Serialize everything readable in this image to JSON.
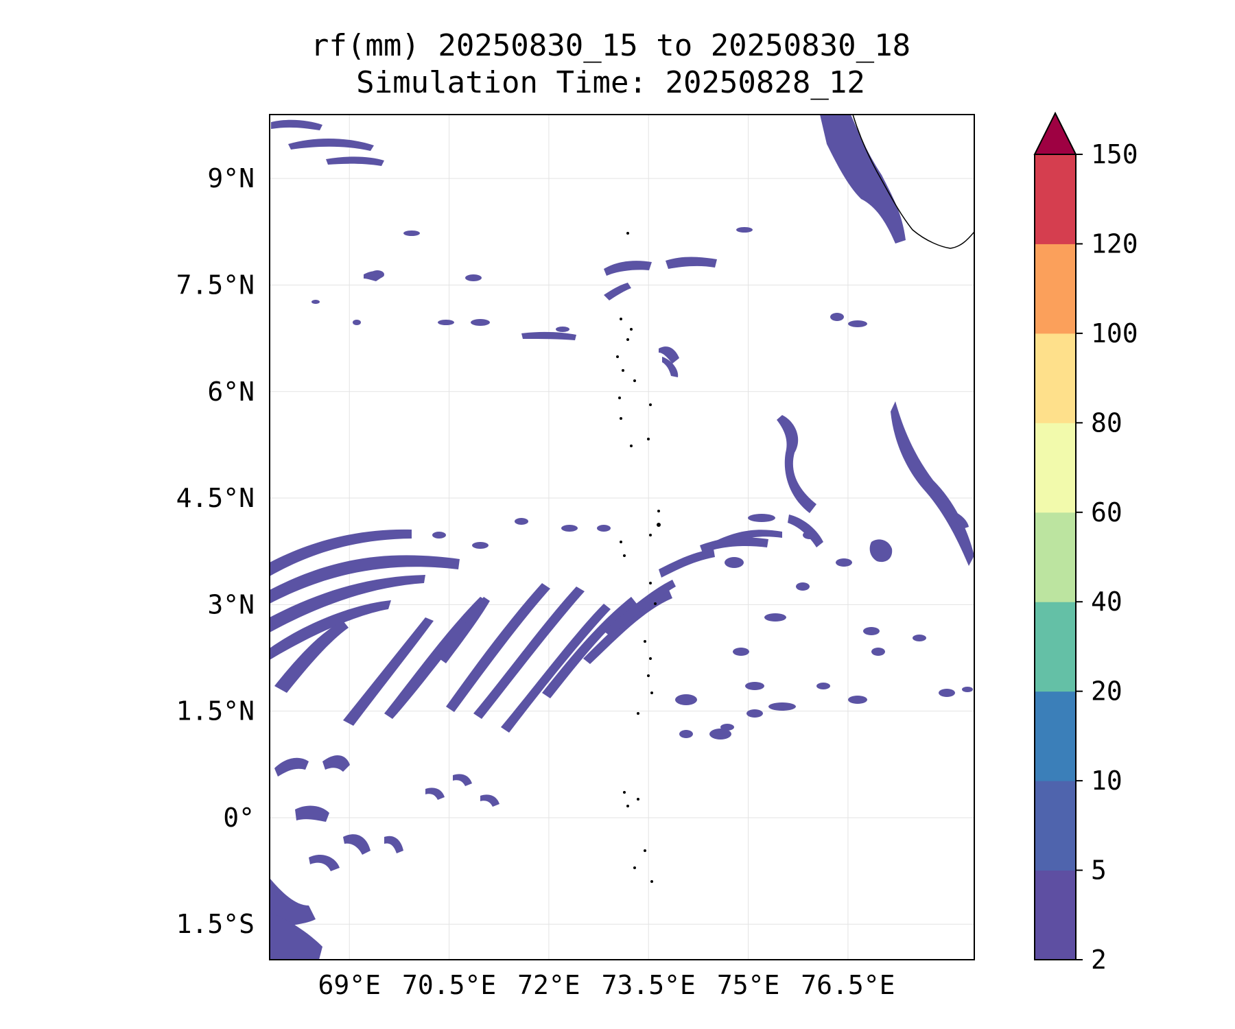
{
  "title": {
    "line1": "rf(mm) 20250830_15 to 20250830_18",
    "line2": "Simulation Time: 20250828_12"
  },
  "map": {
    "lon_range": [
      67.8,
      78.4
    ],
    "lat_range": [
      -2.0,
      9.9
    ],
    "lon_ticks": [
      {
        "value": 69,
        "label": "69°E"
      },
      {
        "value": 70.5,
        "label": "70.5°E"
      },
      {
        "value": 72,
        "label": "72°E"
      },
      {
        "value": 73.5,
        "label": "73.5°E"
      },
      {
        "value": 75,
        "label": "75°E"
      },
      {
        "value": 76.5,
        "label": "76.5°E"
      }
    ],
    "lat_ticks": [
      {
        "value": 9,
        "label": "9°N"
      },
      {
        "value": 7.5,
        "label": "7.5°N"
      },
      {
        "value": 6,
        "label": "6°N"
      },
      {
        "value": 4.5,
        "label": "4.5°N"
      },
      {
        "value": 3,
        "label": "3°N"
      },
      {
        "value": 1.5,
        "label": "1.5°N"
      },
      {
        "value": 0,
        "label": "0°"
      },
      {
        "value": -1.5,
        "label": "1.5°S"
      }
    ],
    "grid": true,
    "rain_color": "#5b53a4",
    "coast_color": "#000000"
  },
  "colorbar": {
    "extend": "max",
    "ticks": [
      "2",
      "5",
      "10",
      "20",
      "40",
      "60",
      "80",
      "100",
      "120",
      "150"
    ],
    "colors": [
      "#5e4fa2",
      "#4f64ad",
      "#3b7fb9",
      "#64c0a6",
      "#bce4a0",
      "#f2faac",
      "#fee08b",
      "#fba05b",
      "#d53e4f"
    ],
    "extend_color": "#9e0142"
  }
}
